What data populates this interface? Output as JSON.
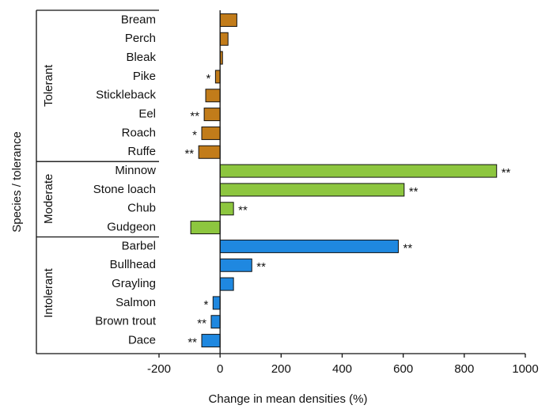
{
  "chart_data": {
    "type": "bar",
    "orientation": "horizontal",
    "x_label": "Change in mean densities (%)",
    "y_label": "Species / tolerance",
    "xlim": [
      -200,
      1000
    ],
    "xticks": [
      -200,
      0,
      200,
      400,
      600,
      800,
      1000
    ],
    "groups": [
      {
        "name": "Tolerant",
        "color": "#c27c1a",
        "categories": [
          "Bream",
          "Perch",
          "Bleak",
          "Pike",
          "Stickleback",
          "Eel",
          "Roach",
          "Ruffe"
        ],
        "values": [
          55,
          26,
          8,
          -15,
          -47,
          -52,
          -60,
          -70
        ],
        "significance": [
          null,
          null,
          null,
          "*",
          null,
          "**",
          "*",
          "**"
        ]
      },
      {
        "name": "Moderate",
        "color": "#8dc63f",
        "categories": [
          "Minnow",
          "Stone loach",
          "Chub",
          "Gudgeon"
        ],
        "values": [
          906,
          603,
          44,
          -96
        ],
        "significance": [
          "**",
          "**",
          "**",
          null
        ]
      },
      {
        "name": "Intolerant",
        "color": "#1f88e0",
        "categories": [
          "Barbel",
          "Bullhead",
          "Grayling",
          "Salmon",
          "Brown trout",
          "Dace"
        ],
        "values": [
          584,
          104,
          44,
          -23,
          -29,
          -60
        ],
        "significance": [
          "**",
          "**",
          null,
          "*",
          "**",
          "**"
        ]
      }
    ]
  }
}
